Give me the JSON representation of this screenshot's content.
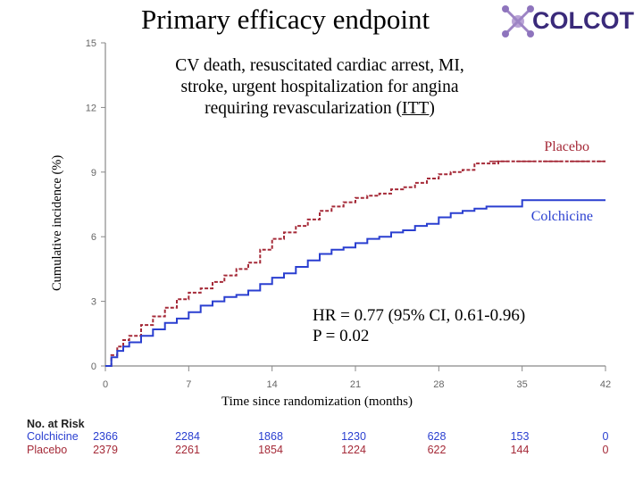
{
  "title": "Primary efficacy endpoint",
  "logo": {
    "text": "COLCOT"
  },
  "subtitle": {
    "line1": "CV death, resuscitated cardiac arrest, MI,",
    "line2": "stroke, urgent hospitalization for angina",
    "line3_pre": "requiring revascularization (",
    "line3_itt": "ITT",
    "line3_post": ")"
  },
  "annotation": {
    "hr": "HR = 0.77 (95% CI, 0.61-0.96)",
    "p": "P = 0.02"
  },
  "colors": {
    "placebo": "#a52a38",
    "colchicine": "#2a3fd0",
    "axis": "#888888"
  },
  "chart_data": {
    "type": "line",
    "title": "Primary efficacy endpoint",
    "xlabel": "Time since randomization (months)",
    "ylabel": "Cumulative incidence (%)",
    "xlim": [
      0,
      42
    ],
    "ylim": [
      0,
      15
    ],
    "xticks": [
      0,
      7,
      14,
      21,
      28,
      35,
      42
    ],
    "yticks": [
      0,
      3,
      6,
      9,
      12,
      15
    ],
    "series": [
      {
        "name": "Placebo",
        "style": "dashed",
        "x": [
          0,
          0.5,
          1,
          1.5,
          2,
          3,
          4,
          5,
          6,
          7,
          8,
          9,
          10,
          11,
          12,
          13,
          14,
          15,
          16,
          17,
          18,
          19,
          20,
          21,
          22,
          23,
          24,
          25,
          26,
          27,
          28,
          29,
          30,
          31,
          32,
          33,
          34,
          35,
          36,
          37,
          38,
          39,
          40,
          41,
          42
        ],
        "y": [
          0,
          0.5,
          0.9,
          1.2,
          1.4,
          1.9,
          2.3,
          2.7,
          3.1,
          3.4,
          3.6,
          3.9,
          4.2,
          4.5,
          4.8,
          5.4,
          5.9,
          6.2,
          6.5,
          6.8,
          7.2,
          7.4,
          7.6,
          7.8,
          7.9,
          8.0,
          8.2,
          8.3,
          8.5,
          8.7,
          8.9,
          9.0,
          9.1,
          9.4,
          9.4,
          9.5,
          9.5,
          9.5,
          9.5,
          9.5,
          9.5,
          9.5,
          9.5,
          9.5,
          9.5
        ]
      },
      {
        "name": "Colchicine",
        "style": "solid",
        "x": [
          0,
          0.5,
          1,
          1.5,
          2,
          3,
          4,
          5,
          6,
          7,
          8,
          9,
          10,
          11,
          12,
          13,
          14,
          15,
          16,
          17,
          18,
          19,
          20,
          21,
          22,
          23,
          24,
          25,
          26,
          27,
          28,
          29,
          30,
          31,
          32,
          33,
          34,
          35,
          36,
          37,
          38,
          39,
          40,
          41,
          42
        ],
        "y": [
          0,
          0.4,
          0.7,
          0.9,
          1.1,
          1.4,
          1.7,
          2.0,
          2.2,
          2.5,
          2.8,
          3.0,
          3.2,
          3.3,
          3.5,
          3.8,
          4.1,
          4.3,
          4.6,
          4.9,
          5.2,
          5.4,
          5.5,
          5.7,
          5.9,
          6.0,
          6.2,
          6.3,
          6.5,
          6.6,
          6.9,
          7.1,
          7.2,
          7.3,
          7.4,
          7.4,
          7.4,
          7.7,
          7.7,
          7.7,
          7.7,
          7.7,
          7.7,
          7.7,
          7.7
        ]
      }
    ],
    "legend": [
      {
        "label": "Placebo",
        "placement": "top-right"
      },
      {
        "label": "Colchicine",
        "placement": "right"
      }
    ]
  },
  "at_risk": {
    "header": "No. at Risk",
    "rows": [
      {
        "label": "Colchicine",
        "values": [
          "2366",
          "2284",
          "1868",
          "1230",
          "628",
          "153",
          "0"
        ]
      },
      {
        "label": "Placebo",
        "values": [
          "2379",
          "2261",
          "1854",
          "1224",
          "622",
          "144",
          "0"
        ]
      }
    ]
  }
}
